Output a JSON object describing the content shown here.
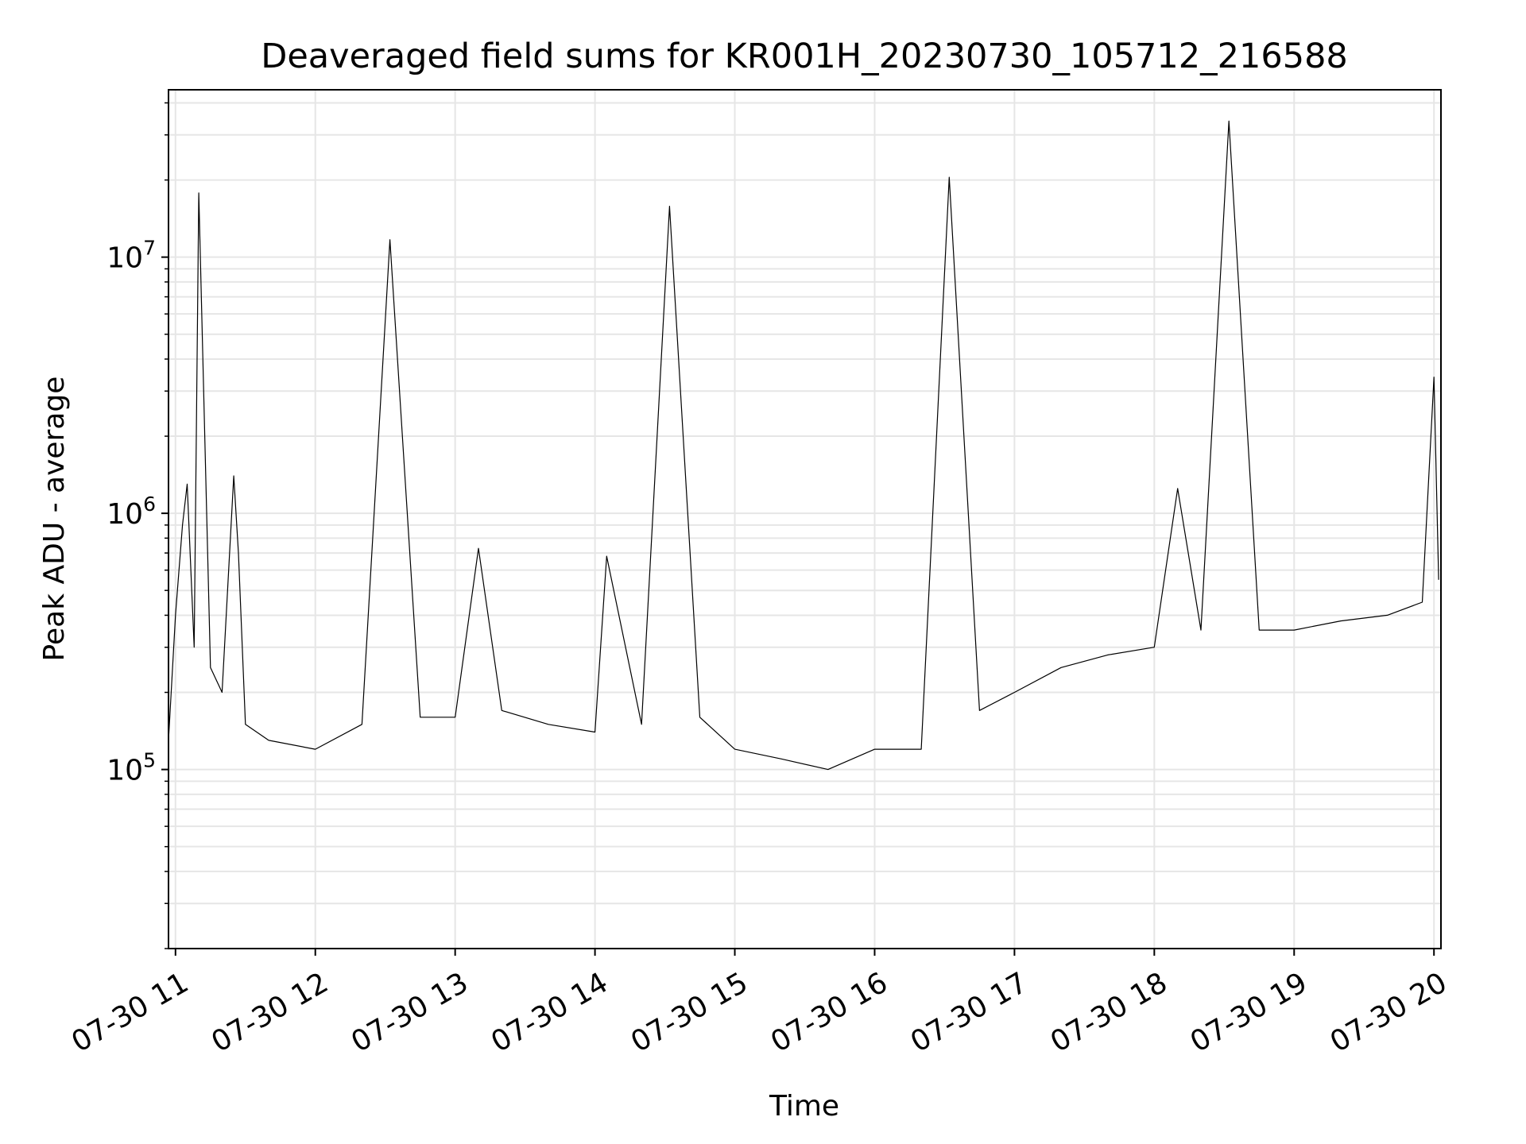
{
  "chart_data": {
    "type": "line",
    "title": "Deaveraged field sums for KR001H_20230730_105712_216588",
    "xlabel": "Time",
    "ylabel": "Peak ADU - average",
    "x_scale": "time",
    "y_scale": "log",
    "xlim": [
      "2023-07-30 10:57",
      "2023-07-30 20:03"
    ],
    "ylim": [
      20000,
      45000000
    ],
    "x_ticks": [
      {
        "value": "2023-07-30 11:00",
        "label": "07-30 11"
      },
      {
        "value": "2023-07-30 12:00",
        "label": "07-30 12"
      },
      {
        "value": "2023-07-30 13:00",
        "label": "07-30 13"
      },
      {
        "value": "2023-07-30 14:00",
        "label": "07-30 14"
      },
      {
        "value": "2023-07-30 15:00",
        "label": "07-30 15"
      },
      {
        "value": "2023-07-30 16:00",
        "label": "07-30 16"
      },
      {
        "value": "2023-07-30 17:00",
        "label": "07-30 17"
      },
      {
        "value": "2023-07-30 18:00",
        "label": "07-30 18"
      },
      {
        "value": "2023-07-30 19:00",
        "label": "07-30 19"
      },
      {
        "value": "2023-07-30 20:00",
        "label": "07-30 20"
      }
    ],
    "y_ticks": [
      {
        "value": 100000,
        "base": "10",
        "exp": "5"
      },
      {
        "value": 1000000,
        "base": "10",
        "exp": "6"
      },
      {
        "value": 10000000,
        "base": "10",
        "exp": "7"
      }
    ],
    "grid": true,
    "grid_color": "#e6e6e6",
    "line_color": "#000000",
    "series": [
      {
        "x": [
          "2023-07-30 10:57",
          "2023-07-30 11:00",
          "2023-07-30 11:03",
          "2023-07-30 11:05",
          "2023-07-30 11:08",
          "2023-07-30 11:10",
          "2023-07-30 11:15",
          "2023-07-30 11:20",
          "2023-07-30 11:25",
          "2023-07-30 11:27",
          "2023-07-30 11:30",
          "2023-07-30 11:40",
          "2023-07-30 12:00",
          "2023-07-30 12:20",
          "2023-07-30 12:32",
          "2023-07-30 12:45",
          "2023-07-30 13:00",
          "2023-07-30 13:10",
          "2023-07-30 13:20",
          "2023-07-30 13:40",
          "2023-07-30 14:00",
          "2023-07-30 14:05",
          "2023-07-30 14:20",
          "2023-07-30 14:32",
          "2023-07-30 14:45",
          "2023-07-30 15:00",
          "2023-07-30 15:20",
          "2023-07-30 15:40",
          "2023-07-30 16:00",
          "2023-07-30 16:20",
          "2023-07-30 16:32",
          "2023-07-30 16:45",
          "2023-07-30 17:00",
          "2023-07-30 17:20",
          "2023-07-30 17:40",
          "2023-07-30 18:00",
          "2023-07-30 18:10",
          "2023-07-30 18:20",
          "2023-07-30 18:32",
          "2023-07-30 18:45",
          "2023-07-30 19:00",
          "2023-07-30 19:20",
          "2023-07-30 19:40",
          "2023-07-30 19:55",
          "2023-07-30 20:00",
          "2023-07-30 20:02"
        ],
        "y": [
          130000,
          400000,
          900000,
          1300000,
          300000,
          17800000,
          250000,
          200000,
          1400000,
          700000,
          150000,
          130000,
          120000,
          150000,
          11700000,
          160000,
          160000,
          730000,
          170000,
          150000,
          140000,
          680000,
          150000,
          15800000,
          160000,
          120000,
          110000,
          100000,
          120000,
          120000,
          20500000,
          170000,
          200000,
          250000,
          280000,
          300000,
          1250000,
          350000,
          34000000,
          350000,
          350000,
          380000,
          400000,
          450000,
          3400000,
          550000
        ]
      }
    ]
  }
}
